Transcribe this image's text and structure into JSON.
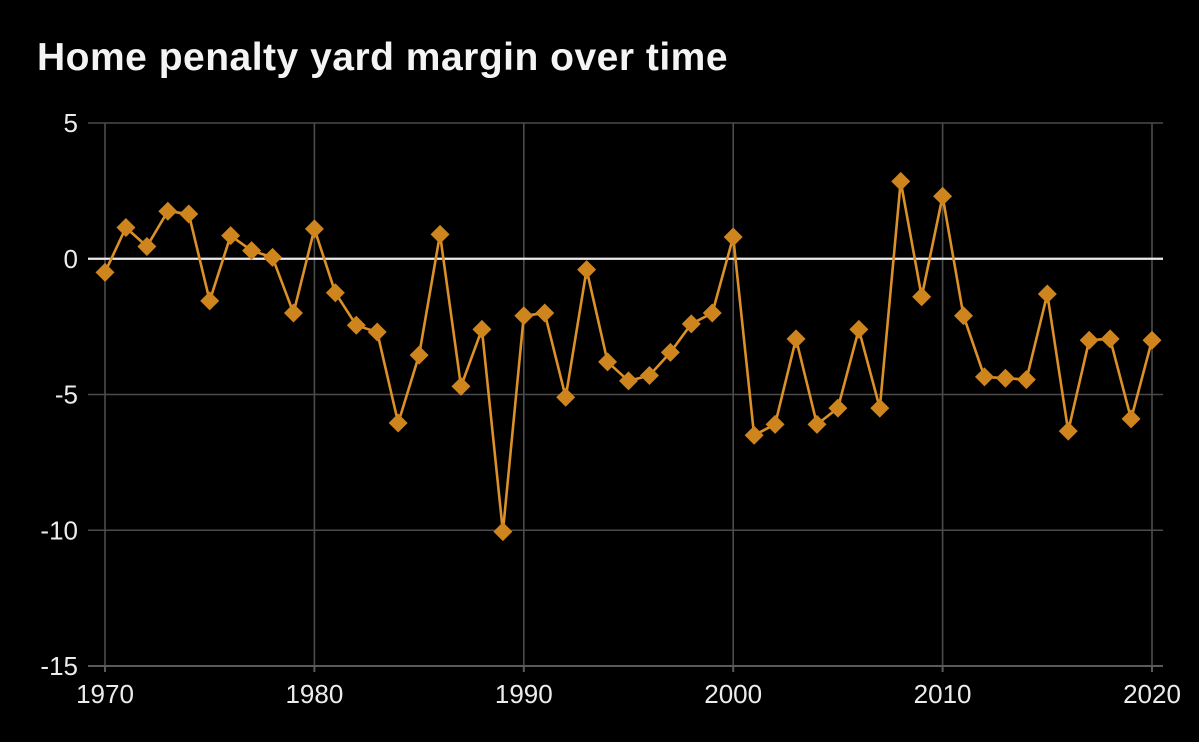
{
  "header": {
    "title": "Home penalty yard margin over time"
  },
  "chart_data": {
    "type": "line",
    "title": "Home penalty yard margin over time",
    "xlabel": "",
    "ylabel": "",
    "series_name": "home-penalty-yard-margin",
    "x": [
      1970,
      1971,
      1972,
      1973,
      1974,
      1975,
      1976,
      1977,
      1978,
      1979,
      1980,
      1981,
      1982,
      1983,
      1984,
      1985,
      1986,
      1987,
      1988,
      1989,
      1990,
      1991,
      1992,
      1993,
      1994,
      1995,
      1996,
      1997,
      1998,
      1999,
      2000,
      2001,
      2002,
      2003,
      2004,
      2005,
      2006,
      2007,
      2008,
      2009,
      2010,
      2011,
      2012,
      2013,
      2014,
      2015,
      2016,
      2017,
      2018,
      2019,
      2020
    ],
    "values": [
      -0.5,
      1.15,
      0.45,
      1.75,
      1.65,
      -1.55,
      0.85,
      0.3,
      0.05,
      -2.0,
      1.1,
      -1.25,
      -2.45,
      -2.7,
      -6.05,
      -3.55,
      0.9,
      -4.7,
      -2.6,
      -10.05,
      -2.1,
      -2.0,
      -5.1,
      -0.4,
      -3.8,
      -4.5,
      -4.3,
      -3.45,
      -2.4,
      -2.0,
      0.8,
      -6.5,
      -6.1,
      -2.95,
      -6.1,
      -5.5,
      -2.6,
      -5.5,
      2.85,
      -1.4,
      2.3,
      -2.1,
      -4.35,
      -4.4,
      -4.45,
      -1.3,
      -6.35,
      -3.0,
      -2.95,
      -5.9,
      -3.0
    ],
    "x_ticks": [
      1970,
      1980,
      1990,
      2000,
      2010,
      2020
    ],
    "y_ticks": [
      5,
      0,
      -5,
      -10,
      -15
    ],
    "xlim": [
      1970,
      2020
    ],
    "ylim": [
      -15,
      5
    ],
    "grid": true,
    "zero_line": true,
    "legend": "none",
    "marker_shape": "diamond",
    "colors": {
      "background": "#000000",
      "line": "#DB9028",
      "marker": "#CE851E",
      "grid": "#4b4b4b",
      "zero_line": "#ebebeb",
      "axis": "#5a5a5a",
      "text": "#ececec",
      "title": "#f4f4f4"
    }
  }
}
